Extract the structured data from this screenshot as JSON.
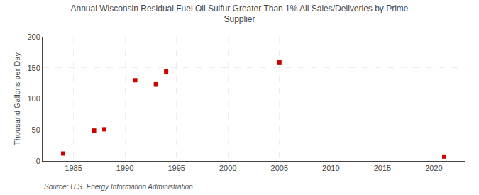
{
  "chart_data": {
    "type": "scatter",
    "title": "Annual Wisconsin Residual Fuel Oil Sulfur Greater Than 1% All Sales/Deliveries by Prime\nSupplier",
    "ylabel": "Thousand Gallons per Day",
    "annotations": [
      "Source: U.S. Energy Information Administration"
    ],
    "x": [
      1984,
      1987,
      1988,
      1991,
      1993,
      1994,
      2005,
      2021
    ],
    "values": [
      12,
      49,
      51,
      130,
      124,
      144,
      159,
      7
    ],
    "color": "#cc0000",
    "marker": "square",
    "xlim": [
      1982,
      2023
    ],
    "ylim": [
      0,
      200
    ],
    "xticks": [
      1985,
      1990,
      1995,
      2000,
      2005,
      2010,
      2015,
      2020
    ],
    "yticks": [
      0,
      50,
      100,
      150,
      200
    ],
    "grid": true
  }
}
